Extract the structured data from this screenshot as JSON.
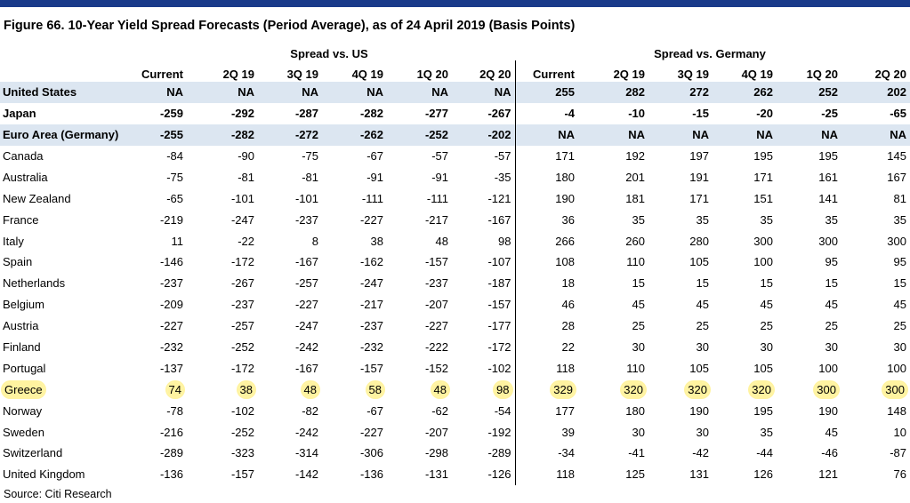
{
  "title": "Figure 66. 10-Year Yield Spread Forecasts (Period Average), as of 24 April 2019 (Basis Points)",
  "group_us": "Spread vs. US",
  "group_de": "Spread vs. Germany",
  "columns": [
    "Current",
    "2Q 19",
    "3Q 19",
    "4Q 19",
    "1Q 20",
    "2Q 20",
    "Current",
    "2Q 19",
    "3Q 19",
    "4Q 19",
    "1Q 20",
    "2Q 20"
  ],
  "rows": [
    {
      "name": "United States",
      "values": [
        "NA",
        "NA",
        "NA",
        "NA",
        "NA",
        "NA",
        "255",
        "282",
        "272",
        "262",
        "252",
        "202"
      ]
    },
    {
      "name": "Japan",
      "values": [
        "-259",
        "-292",
        "-287",
        "-282",
        "-277",
        "-267",
        "-4",
        "-10",
        "-15",
        "-20",
        "-25",
        "-65"
      ]
    },
    {
      "name": "Euro Area (Germany)",
      "values": [
        "-255",
        "-282",
        "-272",
        "-262",
        "-252",
        "-202",
        "NA",
        "NA",
        "NA",
        "NA",
        "NA",
        "NA"
      ]
    },
    {
      "name": "Canada",
      "values": [
        "-84",
        "-90",
        "-75",
        "-67",
        "-57",
        "-57",
        "171",
        "192",
        "197",
        "195",
        "195",
        "145"
      ]
    },
    {
      "name": "Australia",
      "values": [
        "-75",
        "-81",
        "-81",
        "-91",
        "-91",
        "-35",
        "180",
        "201",
        "191",
        "171",
        "161",
        "167"
      ]
    },
    {
      "name": "New Zealand",
      "values": [
        "-65",
        "-101",
        "-101",
        "-111",
        "-111",
        "-121",
        "190",
        "181",
        "171",
        "151",
        "141",
        "81"
      ]
    },
    {
      "name": "France",
      "values": [
        "-219",
        "-247",
        "-237",
        "-227",
        "-217",
        "-167",
        "36",
        "35",
        "35",
        "35",
        "35",
        "35"
      ]
    },
    {
      "name": "Italy",
      "values": [
        "11",
        "-22",
        "8",
        "38",
        "48",
        "98",
        "266",
        "260",
        "280",
        "300",
        "300",
        "300"
      ]
    },
    {
      "name": "Spain",
      "values": [
        "-146",
        "-172",
        "-167",
        "-162",
        "-157",
        "-107",
        "108",
        "110",
        "105",
        "100",
        "95",
        "95"
      ]
    },
    {
      "name": "Netherlands",
      "values": [
        "-237",
        "-267",
        "-257",
        "-247",
        "-237",
        "-187",
        "18",
        "15",
        "15",
        "15",
        "15",
        "15"
      ]
    },
    {
      "name": "Belgium",
      "values": [
        "-209",
        "-237",
        "-227",
        "-217",
        "-207",
        "-157",
        "46",
        "45",
        "45",
        "45",
        "45",
        "45"
      ]
    },
    {
      "name": "Austria",
      "values": [
        "-227",
        "-257",
        "-247",
        "-237",
        "-227",
        "-177",
        "28",
        "25",
        "25",
        "25",
        "25",
        "25"
      ]
    },
    {
      "name": "Finland",
      "values": [
        "-232",
        "-252",
        "-242",
        "-232",
        "-222",
        "-172",
        "22",
        "30",
        "30",
        "30",
        "30",
        "30"
      ]
    },
    {
      "name": "Portugal",
      "values": [
        "-137",
        "-172",
        "-167",
        "-157",
        "-152",
        "-102",
        "118",
        "110",
        "105",
        "105",
        "100",
        "100"
      ]
    },
    {
      "name": "Greece",
      "values": [
        "74",
        "38",
        "48",
        "58",
        "48",
        "98",
        "329",
        "320",
        "320",
        "320",
        "300",
        "300"
      ]
    },
    {
      "name": "Norway",
      "values": [
        "-78",
        "-102",
        "-82",
        "-67",
        "-62",
        "-54",
        "177",
        "180",
        "190",
        "195",
        "190",
        "148"
      ]
    },
    {
      "name": "Sweden",
      "values": [
        "-216",
        "-252",
        "-242",
        "-227",
        "-207",
        "-192",
        "39",
        "30",
        "30",
        "35",
        "45",
        "10"
      ]
    },
    {
      "name": "Switzerland",
      "values": [
        "-289",
        "-323",
        "-314",
        "-306",
        "-298",
        "-289",
        "-34",
        "-41",
        "-42",
        "-44",
        "-46",
        "-87"
      ]
    },
    {
      "name": "United Kingdom",
      "values": [
        "-136",
        "-157",
        "-142",
        "-136",
        "-131",
        "-126",
        "118",
        "125",
        "131",
        "126",
        "121",
        "76"
      ]
    }
  ],
  "source": "Source: Citi Research",
  "colors": {
    "topbar": "#1a3a8a",
    "shade": "#dce6f1",
    "highlight": "#fff3a0"
  }
}
